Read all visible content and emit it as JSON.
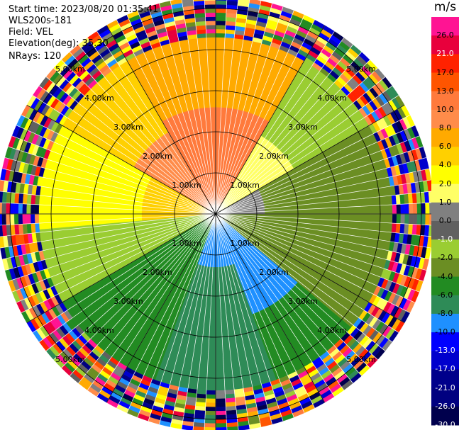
{
  "header": {
    "start_time": "Start time: 2023/08/20 01:35:41",
    "instrument": "WLS200s-181",
    "field": "Field: VEL",
    "elevation": "Elevation(deg): 35.30",
    "nrays": "NRays: 120"
  },
  "chart_data": {
    "type": "heatmap",
    "projection": "polar PPI",
    "field": "VEL",
    "units": "m/s",
    "nrays": 120,
    "range_max_km": 5.3,
    "range_rings_km": [
      1,
      2,
      3,
      4,
      5
    ],
    "range_ring_labels": [
      "1.00km",
      "2.00km",
      "3.00km",
      "4.00km",
      "5.00km"
    ],
    "colorbar": {
      "unit_label": "m/s",
      "levels": [
        {
          "label": "26.0",
          "color": "#ff1493",
          "text": "dark"
        },
        {
          "label": "21.0",
          "color": "#e8003c",
          "text": "light"
        },
        {
          "label": "17.0",
          "color": "#ff2200",
          "text": "dark"
        },
        {
          "label": "13.0",
          "color": "#ff5500",
          "text": "dark"
        },
        {
          "label": "10.0",
          "color": "#ff7a3c",
          "text": "dark"
        },
        {
          "label": "8.0",
          "color": "#ff8c4a",
          "text": "dark"
        },
        {
          "label": "6.0",
          "color": "#ffaa00",
          "text": "dark"
        },
        {
          "label": "4.0",
          "color": "#ffd000",
          "text": "dark"
        },
        {
          "label": "2.0",
          "color": "#ffff00",
          "text": "dark"
        },
        {
          "label": "1.0",
          "color": "#ffff66",
          "text": "dark"
        },
        {
          "label": "0.0",
          "color": "#808080",
          "text": "dark"
        },
        {
          "label": "-1.0",
          "color": "#606060",
          "text": "light"
        },
        {
          "label": "-2.0",
          "color": "#9acd32",
          "text": "dark"
        },
        {
          "label": "-4.0",
          "color": "#6b8e23",
          "text": "dark"
        },
        {
          "label": "-6.0",
          "color": "#228b22",
          "text": "dark"
        },
        {
          "label": "-8.0",
          "color": "#2e8b57",
          "text": "dark"
        },
        {
          "label": "-10.0",
          "color": "#1e90ff",
          "text": "dark"
        },
        {
          "label": "-13.0",
          "color": "#0000ff",
          "text": "light"
        },
        {
          "label": "-17.0",
          "color": "#0000cd",
          "text": "light"
        },
        {
          "label": "-21.0",
          "color": "#00008b",
          "text": "light"
        },
        {
          "label": "-26.0",
          "color": "#000080",
          "text": "light"
        },
        {
          "label": "-30.0",
          "color": "#00004d",
          "text": "light"
        }
      ]
    },
    "sectors": [
      {
        "az_from": 330,
        "az_to": 30,
        "inner_km": 0.0,
        "outer_km": 2.6,
        "value": 10.0
      },
      {
        "az_from": 330,
        "az_to": 30,
        "inner_km": 2.6,
        "outer_km": 4.3,
        "value": 6.0
      },
      {
        "az_from": 300,
        "az_to": 330,
        "inner_km": 0.0,
        "outer_km": 2.3,
        "value": 8.0
      },
      {
        "az_from": 300,
        "az_to": 330,
        "inner_km": 2.3,
        "outer_km": 4.3,
        "value": 4.0
      },
      {
        "az_from": 30,
        "az_to": 60,
        "inner_km": 0.0,
        "outer_km": 2.2,
        "value": 1.0
      },
      {
        "az_from": 30,
        "az_to": 60,
        "inner_km": 2.2,
        "outer_km": 4.3,
        "value": -2.0
      },
      {
        "az_from": 60,
        "az_to": 90,
        "inner_km": 0.0,
        "outer_km": 1.2,
        "value": 0.0
      },
      {
        "az_from": 60,
        "az_to": 90,
        "inner_km": 1.2,
        "outer_km": 4.3,
        "value": -4.0
      },
      {
        "az_from": 90,
        "az_to": 130,
        "inner_km": 0.0,
        "outer_km": 4.3,
        "value": -4.0
      },
      {
        "az_from": 130,
        "az_to": 160,
        "inner_km": 0.0,
        "outer_km": 2.6,
        "value": -10.0
      },
      {
        "az_from": 130,
        "az_to": 160,
        "inner_km": 2.6,
        "outer_km": 4.3,
        "value": -6.0
      },
      {
        "az_from": 160,
        "az_to": 200,
        "inner_km": 0.0,
        "outer_km": 1.3,
        "value": -10.0
      },
      {
        "az_from": 160,
        "az_to": 200,
        "inner_km": 1.3,
        "outer_km": 4.3,
        "value": -8.0
      },
      {
        "az_from": 200,
        "az_to": 240,
        "inner_km": 0.0,
        "outer_km": 4.3,
        "value": -6.0
      },
      {
        "az_from": 240,
        "az_to": 265,
        "inner_km": 0.0,
        "outer_km": 4.3,
        "value": -2.0
      },
      {
        "az_from": 265,
        "az_to": 300,
        "inner_km": 0.0,
        "outer_km": 1.8,
        "value": 4.0
      },
      {
        "az_from": 265,
        "az_to": 300,
        "inner_km": 1.8,
        "outer_km": 4.3,
        "value": 2.0
      },
      {
        "az_from": 0,
        "az_to": 360,
        "inner_km": 4.3,
        "outer_km": 5.3,
        "value": "noise"
      }
    ]
  }
}
